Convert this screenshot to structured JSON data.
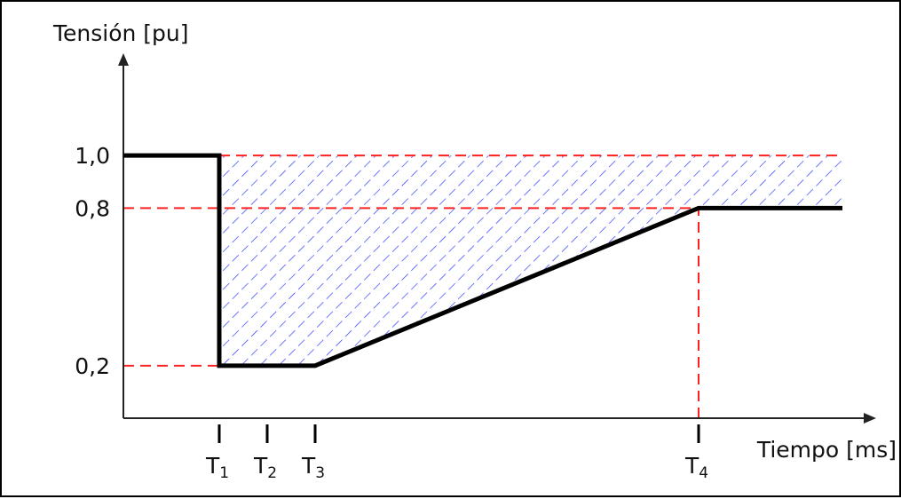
{
  "chart_data": {
    "type": "line",
    "ylabel": "Tensión [pu]",
    "xlabel": "Tiempo [ms]",
    "y_ticks": [
      {
        "value": 1.0,
        "label": "1,0"
      },
      {
        "value": 0.8,
        "label": "0,8"
      },
      {
        "value": 0.2,
        "label": "0,2"
      }
    ],
    "x_ticks": [
      {
        "value": 1,
        "main": "T",
        "sub": "1"
      },
      {
        "value": 1.5,
        "main": "T",
        "sub": "2"
      },
      {
        "value": 2,
        "main": "T",
        "sub": "3"
      },
      {
        "value": 6,
        "main": "T",
        "sub": "4"
      }
    ],
    "ylim": [
      0,
      1.2
    ],
    "xlim": [
      0,
      7.5
    ],
    "series": [
      {
        "values": [
          {
            "x": 0,
            "y": 1.0
          },
          {
            "x": 1,
            "y": 1.0
          },
          {
            "x": 1,
            "y": 0.2
          },
          {
            "x": 2,
            "y": 0.2
          },
          {
            "x": 6,
            "y": 0.8
          },
          {
            "x": 7.5,
            "y": 0.8
          }
        ]
      }
    ],
    "reference_lines": [
      {
        "orientation": "horizontal",
        "y": 1.0,
        "from_x": 1,
        "to_x": 7.5
      },
      {
        "orientation": "horizontal",
        "y": 0.8,
        "from_x": 0,
        "to_x": 6
      },
      {
        "orientation": "horizontal",
        "y": 0.2,
        "from_x": 0,
        "to_x": 1
      },
      {
        "orientation": "vertical",
        "x": 6,
        "from_y": 0,
        "to_y": 0.8
      }
    ],
    "shaded_region": {
      "description_ref": "area between 1.0 and curve",
      "lower_series": 0,
      "upper_y": 1.0,
      "from_x": 1,
      "to_x": 7.5
    },
    "colors": {
      "curve": "#000000",
      "reference": "#ff2020",
      "hatch": "#2030ff",
      "axis": "#222222"
    }
  }
}
